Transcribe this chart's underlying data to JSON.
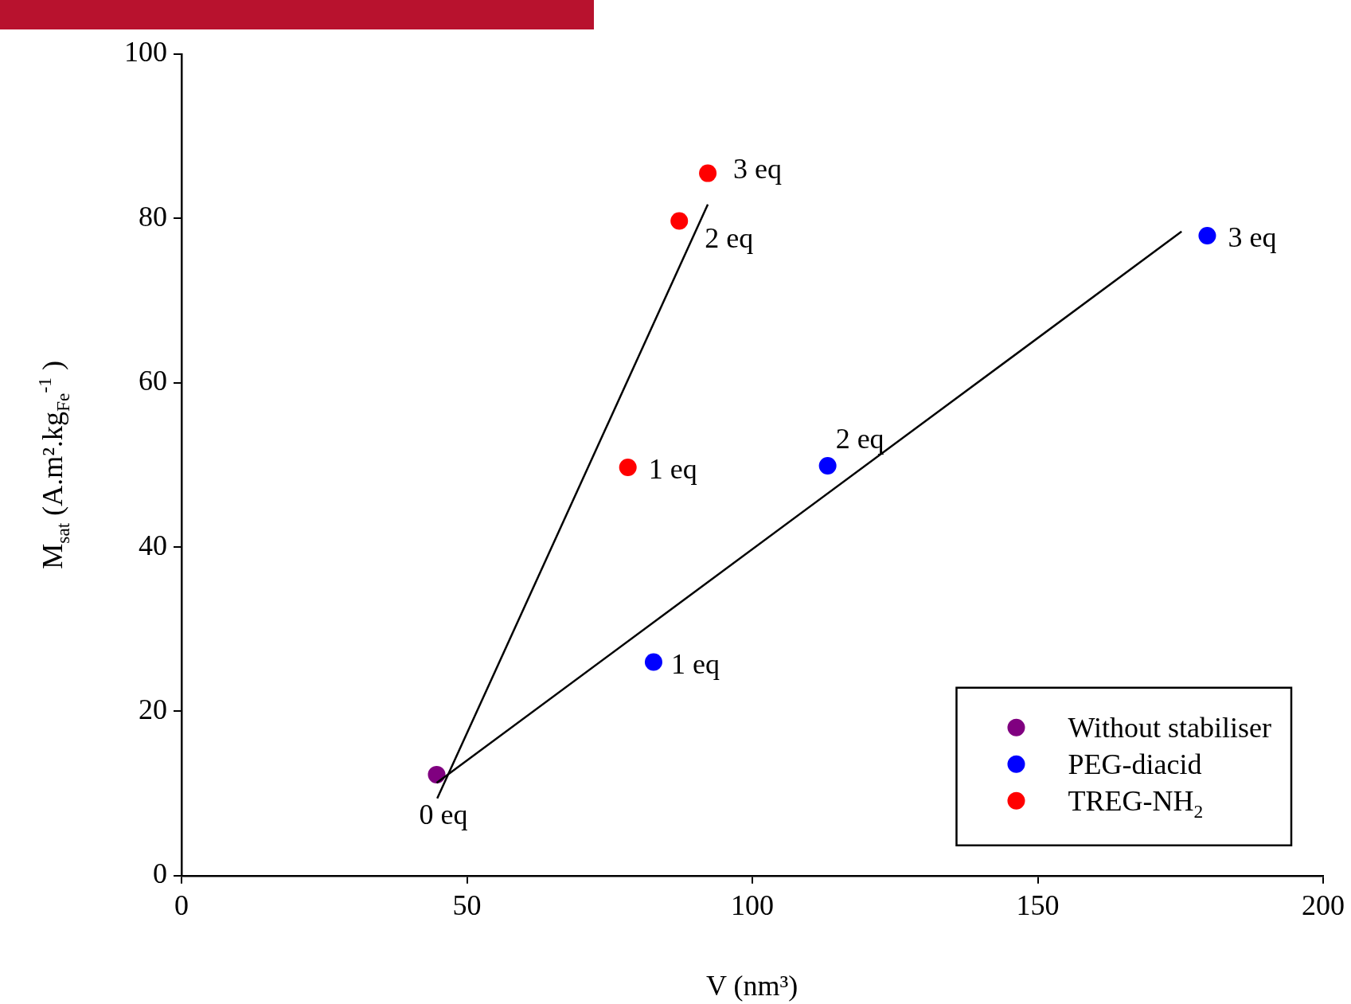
{
  "chart_data": {
    "type": "scatter",
    "xlabel": "V (nm³)",
    "ylabel": "M$_{sat}$ (A.m².kg$_{Fe}$$^{-1}$ )",
    "xlim": [
      0,
      200
    ],
    "xticks": [
      0,
      50,
      100,
      150,
      200
    ],
    "ylim": [
      0,
      100
    ],
    "yticks": [
      0,
      20,
      40,
      60,
      80,
      100
    ],
    "grid": false,
    "legend": "bottom right",
    "marker": "circle",
    "series": [
      {
        "name": "Without stabiliser",
        "color": "#800080",
        "x": [
          44.7
        ],
        "values": [
          12.3
        ]
      },
      {
        "name": "PEG-diacid",
        "color": "#0000ff",
        "x": [
          82.7,
          113.2,
          179.7
        ],
        "values": [
          26.0,
          49.9,
          77.9
        ]
      },
      {
        "name": "TREG-NH$_{2}$",
        "color": "#ff0000",
        "x": [
          78.2,
          87.2,
          92.2
        ],
        "values": [
          49.7,
          79.7,
          85.5
        ]
      },
      {
        "type": "line",
        "color": "#000000",
        "marker": "none",
        "x": [
          44.8,
          92.2
        ],
        "values": [
          9.4,
          81.7
        ]
      },
      {
        "type": "line",
        "color": "#000000",
        "marker": "none",
        "x": [
          44.7,
          175.2
        ],
        "values": [
          11.3,
          78.4
        ]
      }
    ],
    "annotations": [
      {
        "text": "0 eq",
        "x": 44.7,
        "y": 12.3
      },
      {
        "text": "1 eq",
        "x": 82.7,
        "y": 26.0
      },
      {
        "text": "2 eq",
        "x": 113.2,
        "y": 49.9
      },
      {
        "text": "3 eq",
        "x": 179.7,
        "y": 77.9
      },
      {
        "text": "1 eq",
        "x": 78.2,
        "y": 49.7
      },
      {
        "text": "2 eq",
        "x": 87.2,
        "y": 79.7
      },
      {
        "text": "3 eq",
        "x": 92.2,
        "y": 85.5
      }
    ]
  }
}
